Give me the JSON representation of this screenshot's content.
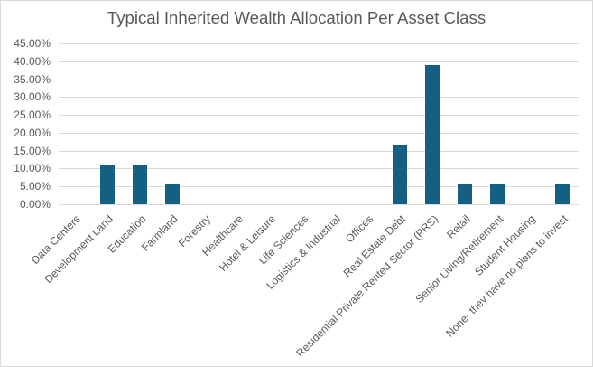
{
  "chart_data": {
    "type": "bar",
    "title": "Typical Inherited Wealth Allocation Per Asset Class",
    "xlabel": "",
    "ylabel": "",
    "ylim": [
      0,
      45
    ],
    "grid": true,
    "legend": null,
    "y_ticks": [
      "0.00%",
      "5.00%",
      "10.00%",
      "15.00%",
      "20.00%",
      "25.00%",
      "30.00%",
      "35.00%",
      "40.00%",
      "45.00%"
    ],
    "categories": [
      "Data Centers",
      "Development Land",
      "Education",
      "Farmland",
      "Forestry",
      "Healthcare",
      "Hotel & Leisure",
      "Life Sciences",
      "Logistics & Industrial",
      "Offices",
      "Real Estate Debt",
      "Residential Private Rented Sector (PRS)",
      "Retail",
      "Senior Living/Retirement",
      "Student Housing",
      "None- they have no plans to invest"
    ],
    "values": [
      0,
      11.11,
      11.11,
      5.56,
      0,
      0,
      0,
      0,
      0,
      0,
      16.67,
      38.89,
      5.56,
      5.56,
      0,
      5.56
    ],
    "bar_color": "#155f83"
  }
}
